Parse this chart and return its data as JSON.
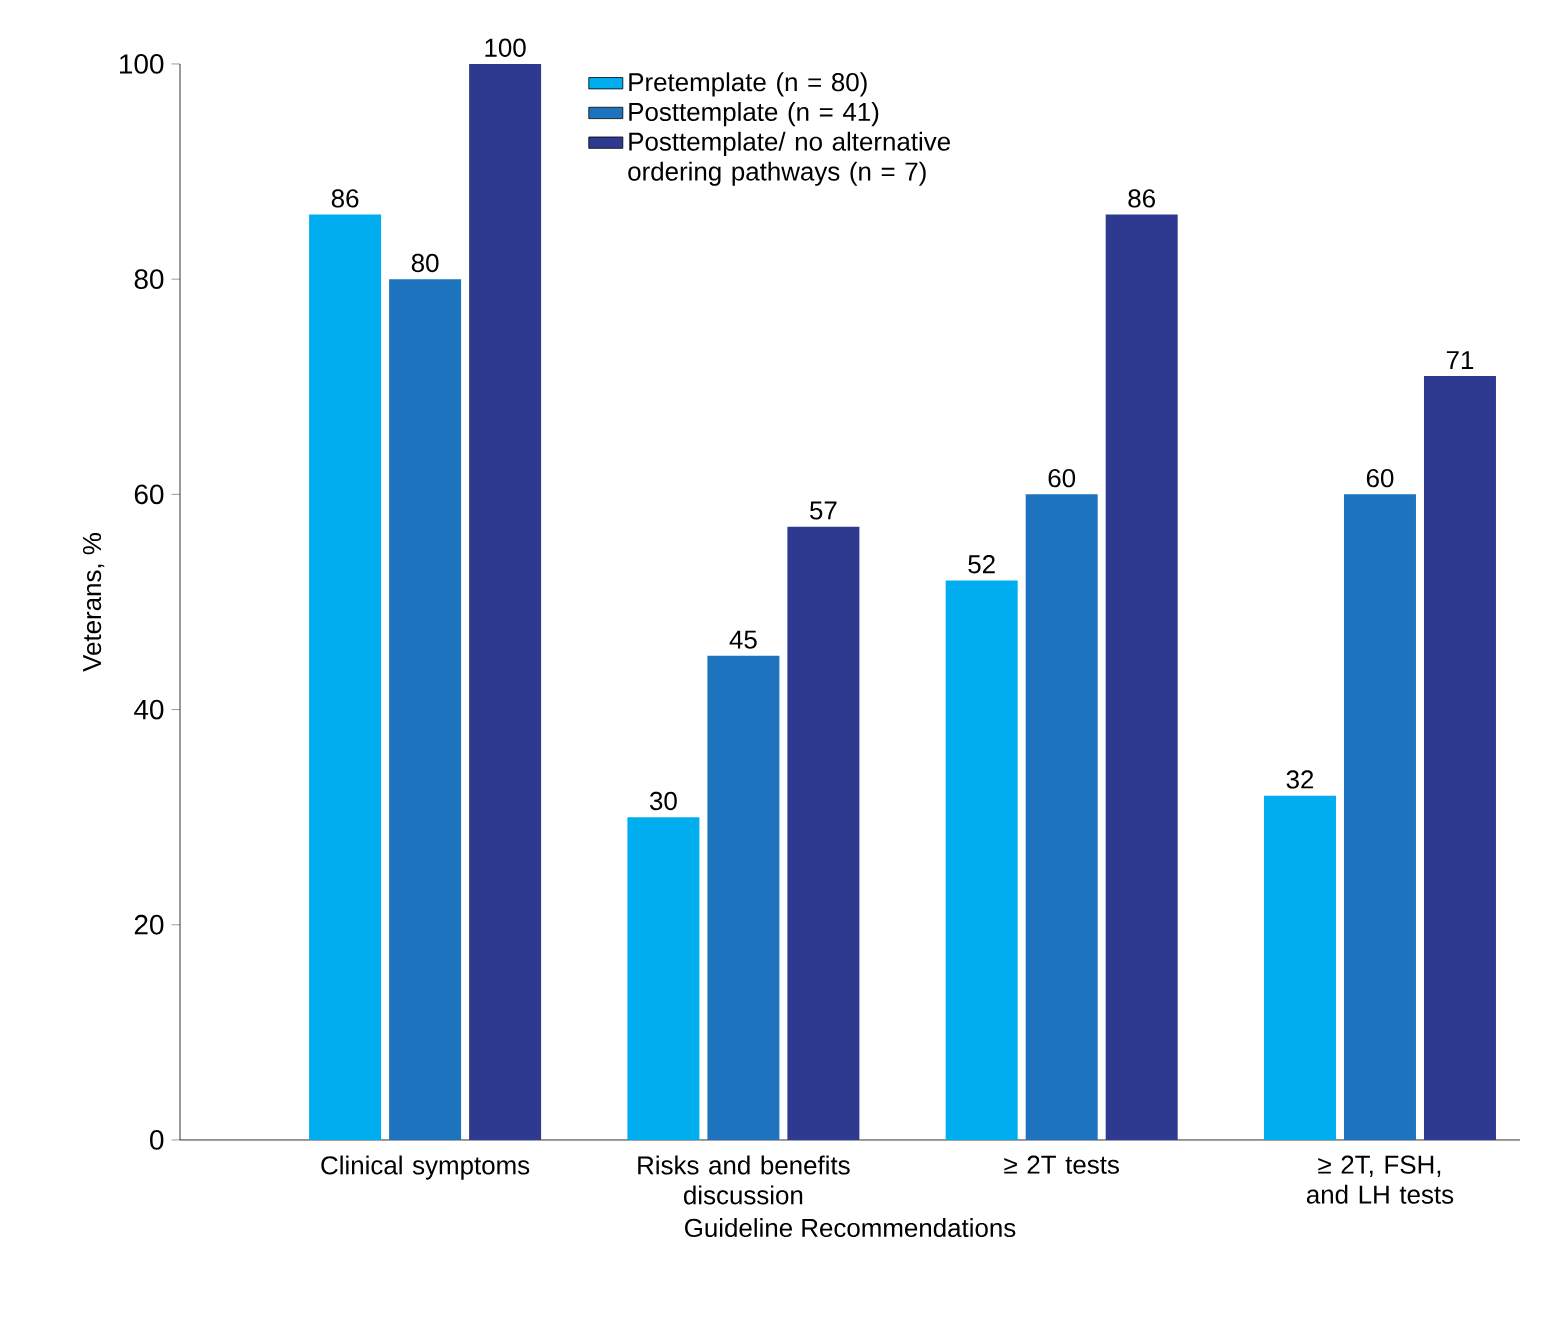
{
  "chart_data": {
    "type": "bar",
    "xlabel": "Guideline Recommendations",
    "ylabel": "Veterans, %",
    "categories": [
      "Clinical symptoms",
      "Risks and benefits discussion",
      "≥ 2T tests",
      "≥ 2T, FSH, and LH tests"
    ],
    "series": [
      {
        "name": "Pretemplate (n = 80)",
        "color": "#00aeef",
        "values": [
          86,
          30,
          52,
          32
        ]
      },
      {
        "name": "Posttemplate (n = 41)",
        "color": "#1e73be",
        "values": [
          80,
          45,
          60,
          60
        ]
      },
      {
        "name": "Posttemplate/ no alternative ordering pathways (n = 7)",
        "color": "#2e3a8f",
        "values": [
          100,
          57,
          86,
          71
        ]
      }
    ],
    "ylim": [
      0,
      100
    ],
    "yticks": [
      0,
      20,
      40,
      60,
      80,
      100
    ],
    "data_labels": true,
    "legend": "top"
  }
}
